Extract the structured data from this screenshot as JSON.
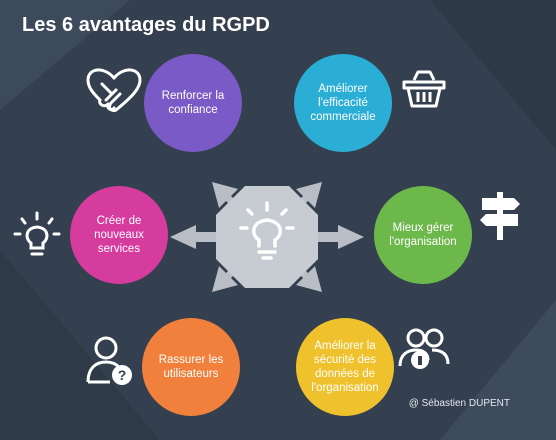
{
  "title": "Les 6 avantages du RGPD",
  "credit": "@ Sébastien DUPENT",
  "colors": {
    "background": "#34404f",
    "octagon": "#c7cbd2",
    "arrow": "#b9bec6"
  },
  "center": {
    "icon": "lightbulb-icon"
  },
  "benefits": [
    {
      "label": "Renforcer la confiance",
      "color": "#7a5ac6",
      "icon": "handshake-icon"
    },
    {
      "label": "Améliorer l'efficacité commerciale",
      "color": "#2aaed6",
      "icon": "shopping-basket-icon"
    },
    {
      "label": "Mieux gérer l'organisation",
      "color": "#6db84a",
      "icon": "signpost-icon"
    },
    {
      "label": "Améliorer la sécurité des données de l'organisation",
      "color": "#efc12c",
      "icon": "users-lock-icon"
    },
    {
      "label": "Rassurer les utilisateurs",
      "color": "#f0803c",
      "icon": "user-question-icon"
    },
    {
      "label": "Créer de nouveaux services",
      "color": "#d63b9e",
      "icon": "lightbulb-idea-icon"
    }
  ]
}
